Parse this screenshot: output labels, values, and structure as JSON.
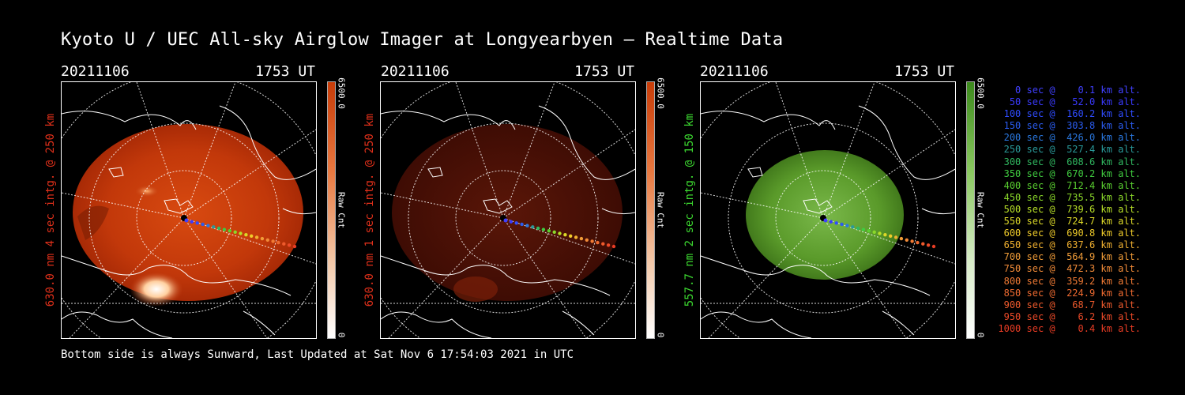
{
  "title": "Kyoto U / UEC All-sky Airglow Imager at Longyearbyen — Realtime Data",
  "footer": "Bottom side is always Sunward, Last Updated at Sat Nov  6 17:54:03 2021 in UTC",
  "colors": {
    "red_label": "#e0301a",
    "green_label": "#3cd830",
    "red_panel_glow": "#d13a0b",
    "dim_panel_glow": "#4a0f05",
    "green_panel_glow": "#4f9b22"
  },
  "panels": [
    {
      "date": "20211106",
      "time": "1753 UT",
      "ylabel": "630.0 nm  4 sec intg. @ 250 km",
      "cbar_max": "6500.0",
      "cbar_label": "Raw Cnt",
      "cbar_min": "0"
    },
    {
      "date": "20211106",
      "time": "1753 UT",
      "ylabel": "630.0 nm  1 sec intg. @ 250 km",
      "cbar_max": "6500.0",
      "cbar_label": "Raw Cnt",
      "cbar_min": "0"
    },
    {
      "date": "20211106",
      "time": "1753 UT",
      "ylabel": "557.7 nm  2 sec intg. @ 150 km",
      "cbar_max": "6500.0",
      "cbar_label": "Raw Cnt",
      "cbar_min": "0"
    }
  ],
  "legend": [
    {
      "text": "   0 sec @    0.1 km alt.",
      "color": "#4040ff"
    },
    {
      "text": "  50 sec @   52.0 km alt.",
      "color": "#3a3aff"
    },
    {
      "text": " 100 sec @  160.2 km alt.",
      "color": "#2f4cff"
    },
    {
      "text": " 150 sec @  303.8 km alt.",
      "color": "#2a5cf0"
    },
    {
      "text": " 200 sec @  426.0 km alt.",
      "color": "#2a78e0"
    },
    {
      "text": " 250 sec @  527.4 km alt.",
      "color": "#2a9a9a"
    },
    {
      "text": " 300 sec @  608.6 km alt.",
      "color": "#30b860"
    },
    {
      "text": " 350 sec @  670.2 km alt.",
      "color": "#40cc40"
    },
    {
      "text": " 400 sec @  712.4 km alt.",
      "color": "#5ad030"
    },
    {
      "text": " 450 sec @  735.5 km alt.",
      "color": "#8ad82a"
    },
    {
      "text": " 500 sec @  739.6 km alt.",
      "color": "#b8e028"
    },
    {
      "text": " 550 sec @  724.7 km alt.",
      "color": "#dcd828"
    },
    {
      "text": " 600 sec @  690.8 km alt.",
      "color": "#f0cc2a"
    },
    {
      "text": " 650 sec @  637.6 km alt.",
      "color": "#f0b030"
    },
    {
      "text": " 700 sec @  564.9 km alt.",
      "color": "#f09c38"
    },
    {
      "text": " 750 sec @  472.3 km alt.",
      "color": "#f08a38"
    },
    {
      "text": " 800 sec @  359.2 km alt.",
      "color": "#f07a34"
    },
    {
      "text": " 850 sec @  224.9 km alt.",
      "color": "#ee6a30"
    },
    {
      "text": " 900 sec @   68.7 km alt.",
      "color": "#ee5a2c"
    },
    {
      "text": " 950 sec @    6.2 km alt.",
      "color": "#ec4a28"
    },
    {
      "text": "1000 sec @    0.4 km alt.",
      "color": "#e83c24"
    }
  ]
}
